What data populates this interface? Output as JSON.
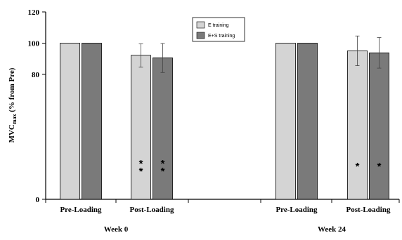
{
  "chart_data": {
    "type": "bar",
    "ylabel_main": "MVC",
    "ylabel_sub": "max",
    "ylabel_rest": " (% from Pre)",
    "ylim": [
      0,
      120
    ],
    "yticks": [
      0,
      80,
      100,
      120
    ],
    "grid": false,
    "legend_position": "top-center",
    "groups": [
      {
        "label": "Week 0",
        "categories": [
          "Pre-Loading",
          "Post-Loading"
        ]
      },
      {
        "label": "Week 24",
        "categories": [
          "Pre-Loading",
          "Post-Loading"
        ]
      }
    ],
    "series": [
      {
        "name": "E training",
        "color": "#d4d4d4",
        "values": [
          100,
          92.2,
          100,
          95.1
        ],
        "err_upper": [
          null,
          99.6,
          null,
          104.6
        ],
        "err_lower": [
          null,
          84.6,
          null,
          85.6
        ],
        "marks": [
          "",
          "**",
          "",
          "*"
        ]
      },
      {
        "name": "E+S training",
        "color": "#7a7a7a",
        "values": [
          100,
          90.6,
          100,
          93.8
        ],
        "err_upper": [
          null,
          99.8,
          null,
          103.6
        ],
        "err_lower": [
          null,
          81.2,
          null,
          84.0
        ],
        "marks": [
          "",
          "**",
          "",
          "*"
        ]
      }
    ]
  }
}
